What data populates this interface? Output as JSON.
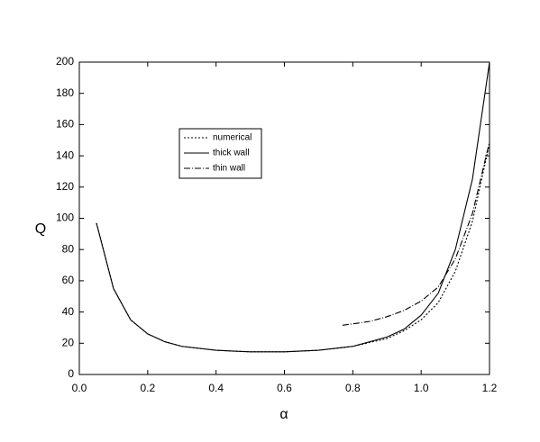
{
  "chart_data": {
    "type": "line",
    "xlabel": "α",
    "ylabel": "Q",
    "xlim": [
      0,
      1.2
    ],
    "ylim": [
      0,
      200
    ],
    "xticks": [
      {
        "value": 0,
        "label": "0.0"
      },
      0.2,
      0.4,
      0.6,
      0.8,
      {
        "value": 1,
        "label": "1.0"
      },
      1.2
    ],
    "yticks": [
      0,
      20,
      40,
      60,
      80,
      100,
      120,
      140,
      160,
      180,
      200
    ],
    "legend": "upper left",
    "series": [
      {
        "name": "numerical",
        "color": "#000000",
        "style": "dotted",
        "x": [
          0.05,
          0.1,
          0.15,
          0.2,
          0.25,
          0.3,
          0.4,
          0.5,
          0.6,
          0.7,
          0.8,
          0.9,
          0.95,
          1.0,
          1.05,
          1.1,
          1.15,
          1.2
        ],
        "values": [
          97,
          55,
          35,
          26,
          21,
          18,
          15.5,
          14.5,
          14.5,
          15.5,
          18,
          23,
          28,
          35,
          46,
          66,
          98,
          148
        ]
      },
      {
        "name": "thick wall",
        "color": "#000000",
        "style": "solid",
        "x": [
          0.05,
          0.1,
          0.15,
          0.2,
          0.25,
          0.3,
          0.4,
          0.5,
          0.6,
          0.7,
          0.8,
          0.9,
          0.95,
          1.0,
          1.05,
          1.1,
          1.15,
          1.2
        ],
        "values": [
          97,
          55,
          35,
          26,
          21,
          18,
          15.5,
          14.5,
          14.5,
          15.5,
          18,
          24,
          29,
          38,
          52,
          80,
          125,
          200
        ]
      },
      {
        "name": "thin wall",
        "color": "#000000",
        "style": "dashdot",
        "x": [
          0.77,
          0.85,
          0.9,
          0.95,
          1.0,
          1.05,
          1.1,
          1.15,
          1.2
        ],
        "values": [
          31.5,
          34,
          37,
          41,
          47,
          56,
          74,
          103,
          149
        ]
      }
    ]
  }
}
